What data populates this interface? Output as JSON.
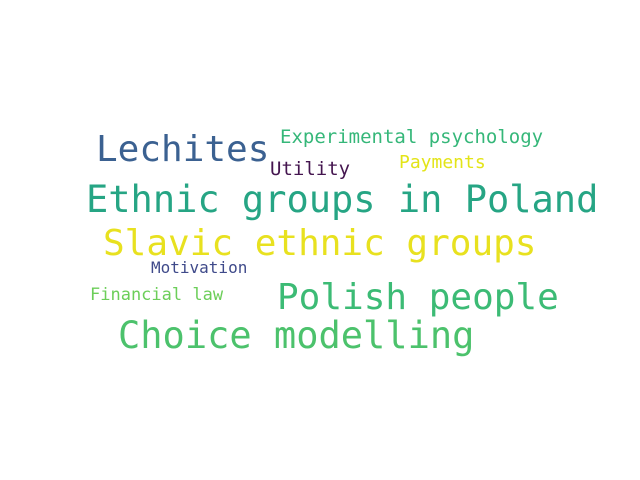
{
  "words": [
    {
      "id": "experimental",
      "text": "Experimental psychology",
      "color": "#35b779"
    },
    {
      "id": "lechites",
      "text": "Lechites",
      "color": "#3b6191"
    },
    {
      "id": "payments",
      "text": "Payments",
      "color": "#e3e418"
    },
    {
      "id": "utility",
      "text": "Utility",
      "color": "#44154f"
    },
    {
      "id": "ethnic",
      "text": "Ethnic groups in Poland",
      "color": "#26a584"
    },
    {
      "id": "slavic",
      "text": "Slavic ethnic groups",
      "color": "#e8e11f"
    },
    {
      "id": "motivation",
      "text": "Motivation",
      "color": "#3f4a8a"
    },
    {
      "id": "financial",
      "text": "Financial law",
      "color": "#6cce59"
    },
    {
      "id": "polish",
      "text": "Polish people",
      "color": "#3cbb75"
    },
    {
      "id": "choice",
      "text": "Choice modelling",
      "color": "#4cc26c"
    }
  ]
}
